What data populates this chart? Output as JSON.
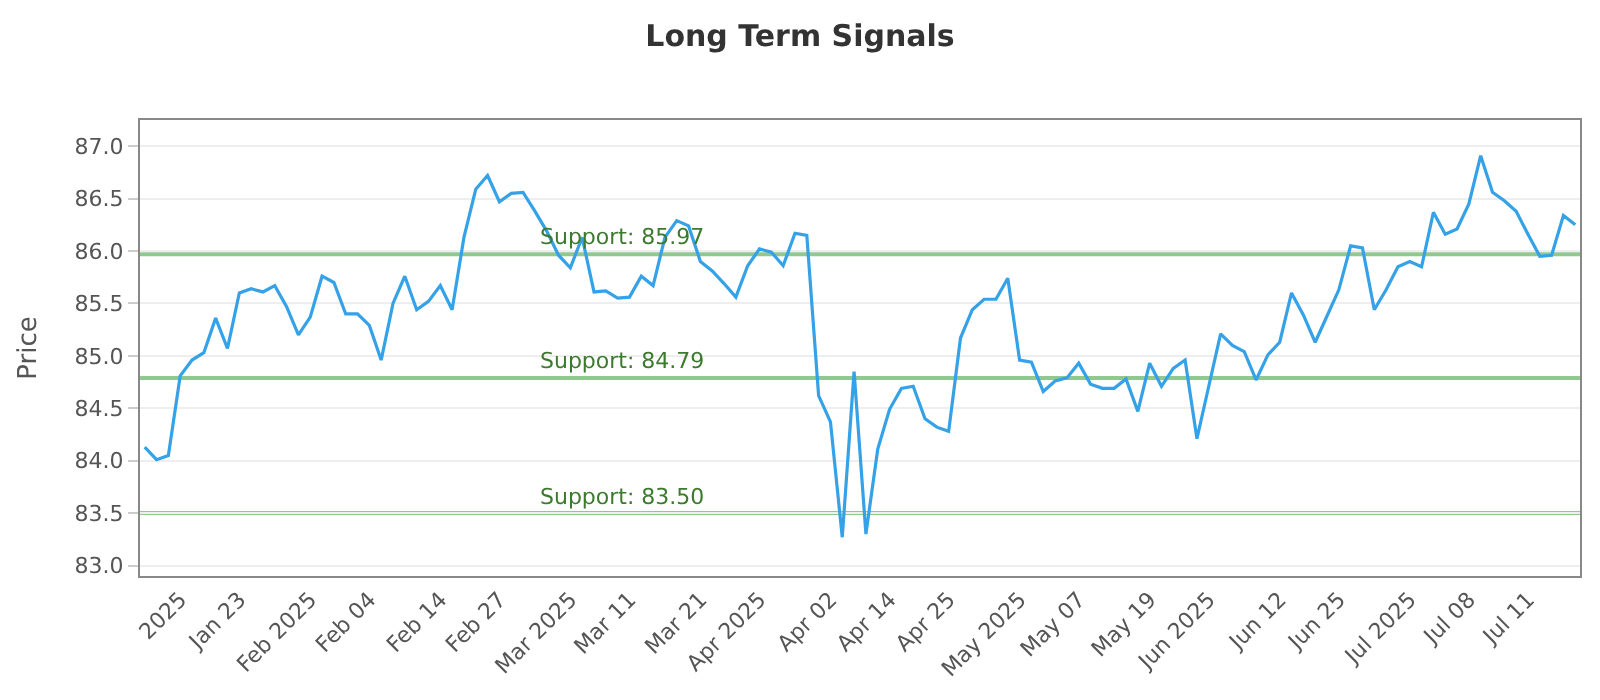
{
  "chart_data": {
    "type": "line",
    "title": "Long Term Signals",
    "ylabel": "Price",
    "categories": [
      null,
      null,
      null,
      "2025",
      null,
      null,
      null,
      null,
      "Jan 23",
      null,
      null,
      null,
      null,
      null,
      "Feb 2025",
      null,
      null,
      null,
      null,
      "Feb 04",
      null,
      null,
      null,
      null,
      null,
      "Feb 14",
      null,
      null,
      null,
      null,
      "Feb 27",
      null,
      null,
      null,
      null,
      null,
      "Mar 2025",
      null,
      null,
      null,
      null,
      "Mar 11",
      null,
      null,
      null,
      null,
      null,
      "Mar 21",
      null,
      null,
      null,
      null,
      "Apr 2025",
      null,
      null,
      null,
      null,
      null,
      "Apr 02",
      null,
      null,
      null,
      null,
      "Apr 14",
      null,
      null,
      null,
      null,
      "Apr 25",
      null,
      null,
      null,
      null,
      null,
      "May 2025",
      null,
      null,
      null,
      null,
      "May 07",
      null,
      null,
      null,
      null,
      null,
      "May 19",
      null,
      null,
      null,
      null,
      "Jun 2025",
      null,
      null,
      null,
      null,
      null,
      "Jun 12",
      null,
      null,
      null,
      null,
      "Jun 25",
      null,
      null,
      null,
      null,
      null,
      "Jul 2025",
      null,
      null,
      null,
      null,
      "Jul 08",
      null,
      null,
      null,
      null,
      "Jul 11",
      null,
      null,
      null,
      null
    ],
    "series": [
      {
        "color": "#35a2e8",
        "values": [
          84.13,
          84.01,
          84.05,
          84.81,
          84.96,
          85.03,
          85.36,
          85.07,
          85.6,
          85.64,
          85.61,
          85.67,
          85.47,
          85.2,
          85.37,
          85.76,
          85.7,
          85.4,
          85.4,
          85.29,
          84.96,
          85.5,
          85.76,
          85.44,
          85.52,
          85.67,
          85.44,
          86.13,
          86.59,
          86.72,
          86.47,
          86.55,
          86.56,
          86.38,
          86.19,
          85.96,
          85.84,
          86.13,
          85.61,
          85.62,
          85.55,
          85.56,
          85.76,
          85.67,
          86.13,
          86.29,
          86.24,
          85.9,
          85.81,
          85.69,
          85.56,
          85.86,
          86.02,
          85.99,
          85.86,
          86.17,
          86.15,
          84.62,
          84.37,
          83.27,
          84.85,
          83.3,
          84.11,
          84.49,
          84.69,
          84.71,
          84.4,
          84.32,
          84.28,
          85.17,
          85.44,
          85.54,
          85.54,
          85.74,
          84.96,
          84.94,
          84.66,
          84.76,
          84.79,
          84.93,
          84.73,
          84.69,
          84.69,
          84.78,
          84.47,
          84.93,
          84.71,
          84.88,
          84.96,
          84.21,
          84.71,
          85.21,
          85.1,
          85.04,
          84.77,
          85.01,
          85.13,
          85.6,
          85.39,
          85.13,
          85.38,
          85.63,
          86.05,
          86.03,
          85.44,
          85.63,
          85.85,
          85.9,
          85.85,
          86.37,
          86.16,
          86.21,
          86.45,
          86.91,
          86.56,
          86.48,
          86.38,
          86.16,
          85.95,
          85.96,
          86.34,
          86.25
        ]
      }
    ],
    "ylim": [
      82.9,
      87.25
    ],
    "yticks": [
      {
        "value": 83,
        "label": "83.0"
      },
      {
        "value": 83.5,
        "label": "83.5"
      },
      {
        "value": 84,
        "label": "84.0"
      },
      {
        "value": 84.5,
        "label": "84.5"
      },
      {
        "value": 85,
        "label": "85.0"
      },
      {
        "value": 85.5,
        "label": "85.5"
      },
      {
        "value": 86,
        "label": "86.0"
      },
      {
        "value": 86.5,
        "label": "86.5"
      },
      {
        "value": 87,
        "label": "87.0"
      }
    ],
    "ref_lines": [
      {
        "axis": "y",
        "value": 85.97,
        "label": "Support: 85.97",
        "color": "#90c890"
      },
      {
        "axis": "y",
        "value": 84.79,
        "label": "Support: 84.79",
        "color": "#90c890"
      },
      {
        "axis": "y",
        "value": 83.5,
        "label": "Support: 83.50",
        "color": "#90c890"
      }
    ],
    "grid": "y",
    "legend": false,
    "marker": "none",
    "line_style": "solid"
  }
}
